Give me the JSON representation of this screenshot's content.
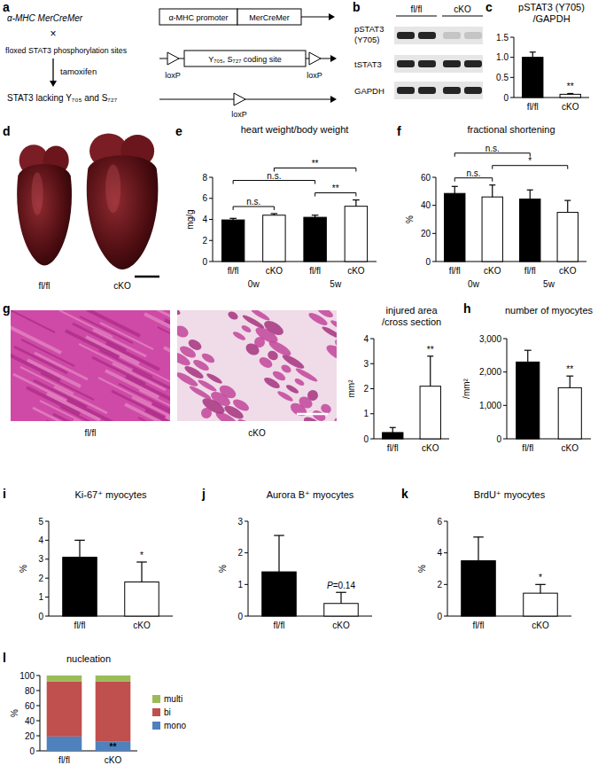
{
  "diagram": {
    "panel": "a",
    "left": [
      "α-MHC MerCreMer",
      "×",
      "floxed STAT3 phosphorylation sites",
      "tamoxifen",
      "STAT3 lacking Y₇₀₅ and S₇₂₇"
    ],
    "transgene": [
      "α-MHC promoter",
      "MerCreMer"
    ],
    "floxed": {
      "site": "Y₇₀₅, S₇₂₇ coding site",
      "lox": [
        "loxP",
        "loxP"
      ]
    },
    "deleted": {
      "lox": "loxP"
    }
  },
  "blot": {
    "panel": "b",
    "rows": [
      [
        "pSTAT3",
        "(Y705)"
      ],
      [
        "tSTAT3"
      ],
      [
        "GAPDH"
      ]
    ],
    "groups": [
      "fl/fl",
      "cKO"
    ]
  },
  "photo": {
    "panel": "d",
    "labels": [
      "fl/fl",
      "cKO"
    ]
  },
  "histology": {
    "panel": "g",
    "labels": [
      "fl/fl",
      "cKO"
    ]
  },
  "chart_data": [
    {
      "type": "bar",
      "panel": "c",
      "title": [
        "pSTAT3 (Y705)",
        "/GAPDH"
      ],
      "categories": [
        "fl/fl",
        "cKO"
      ],
      "values": [
        1.0,
        0.08
      ],
      "errors": [
        0.13,
        0.02
      ],
      "colors": [
        "#000000",
        "#ffffff"
      ],
      "ylim": [
        0,
        1.5
      ],
      "yticks": [
        0,
        0.5,
        {
          "value": 1,
          "label": "1.0"
        },
        1.5
      ],
      "annotations": [
        {
          "text": "**",
          "category": 1
        }
      ]
    },
    {
      "type": "bar",
      "panel": "e",
      "title": [
        "heart weight/body weight"
      ],
      "ylabel": "mg/g",
      "categories": [
        "fl/fl",
        "cKO",
        "fl/fl",
        "cKO"
      ],
      "group_labels": [
        "0w",
        "5w"
      ],
      "values": [
        3.95,
        4.4,
        4.2,
        5.25
      ],
      "errors": [
        0.15,
        0.15,
        0.2,
        0.6
      ],
      "colors": [
        "#000000",
        "#ffffff",
        "#000000",
        "#ffffff"
      ],
      "ylim": [
        0,
        8
      ],
      "yticks": [
        0,
        2,
        4,
        6,
        8
      ],
      "annotations": [
        {
          "text": "n.s.",
          "from": 0,
          "to": 1
        },
        {
          "text": "**",
          "from": 2,
          "to": 3
        },
        {
          "text": "n.s.",
          "from": 0,
          "to": 2
        },
        {
          "text": "**",
          "from": 1,
          "to": 3
        }
      ]
    },
    {
      "type": "bar",
      "panel": "f",
      "title": [
        "fractional shortening"
      ],
      "ylabel": "%",
      "categories": [
        "fl/fl",
        "cKO",
        "fl/fl",
        "cKO"
      ],
      "group_labels": [
        "0w",
        "5w"
      ],
      "values": [
        48.5,
        46,
        44.5,
        35
      ],
      "errors": [
        5,
        8.5,
        6.5,
        8.5
      ],
      "colors": [
        "#000000",
        "#ffffff",
        "#000000",
        "#ffffff"
      ],
      "ylim": [
        0,
        60
      ],
      "yticks": [
        0,
        20,
        40,
        60
      ],
      "annotations": [
        {
          "text": "n.s.",
          "from": 0,
          "to": 1
        },
        {
          "text": "*",
          "from": 1,
          "to": 3
        },
        {
          "text": "n.s.",
          "from": 0,
          "to": 2
        }
      ]
    },
    {
      "type": "bar",
      "title": [
        "injured area",
        "/cross section"
      ],
      "ylabel": "mm²",
      "categories": [
        "fl/fl",
        "cKO"
      ],
      "values": [
        0.25,
        2.1
      ],
      "errors": [
        0.2,
        1.2
      ],
      "colors": [
        "#000000",
        "#ffffff"
      ],
      "ylim": [
        0,
        4
      ],
      "yticks": [
        0,
        1,
        2,
        3,
        4
      ],
      "annotations": [
        {
          "text": "**",
          "category": 1
        }
      ]
    },
    {
      "type": "bar",
      "panel": "h",
      "title": [
        "number of myocytes"
      ],
      "ylabel": "/mm²",
      "categories": [
        "fl/fl",
        "cKO"
      ],
      "values": [
        2300,
        1530
      ],
      "errors": [
        350,
        350
      ],
      "colors": [
        "#000000",
        "#ffffff"
      ],
      "ylim": [
        0,
        3000
      ],
      "yticks": [
        0,
        {
          "value": 1000,
          "label": "1,000"
        },
        {
          "value": 2000,
          "label": "2,000"
        },
        {
          "value": 3000,
          "label": "3,000"
        }
      ],
      "annotations": [
        {
          "text": "**",
          "category": 1
        }
      ]
    },
    {
      "type": "bar",
      "panel": "i",
      "title": [
        "Ki-67⁺ myocytes"
      ],
      "ylabel": "%",
      "categories": [
        "fl/fl",
        "cKO"
      ],
      "values": [
        3.1,
        1.8
      ],
      "errors": [
        0.9,
        1.05
      ],
      "colors": [
        "#000000",
        "#ffffff"
      ],
      "ylim": [
        0,
        5
      ],
      "yticks": [
        0,
        1,
        2,
        3,
        4,
        5
      ],
      "annotations": [
        {
          "text": "*",
          "category": 1
        }
      ]
    },
    {
      "type": "bar",
      "panel": "j",
      "title": [
        "Aurora B⁺ myocytes"
      ],
      "ylabel": "%",
      "categories": [
        "fl/fl",
        "cKO"
      ],
      "values": [
        1.4,
        0.4
      ],
      "errors": [
        1.15,
        0.35
      ],
      "colors": [
        "#000000",
        "#ffffff"
      ],
      "ylim": [
        0,
        3
      ],
      "yticks": [
        0,
        1,
        2,
        3
      ],
      "annotations": [
        {
          "text": "P=0.14",
          "category": 1
        }
      ]
    },
    {
      "type": "bar",
      "panel": "k",
      "title": [
        "BrdU⁺ myocytes"
      ],
      "ylabel": "%",
      "categories": [
        "fl/fl",
        "cKO"
      ],
      "values": [
        3.5,
        1.45
      ],
      "errors": [
        1.5,
        0.55
      ],
      "colors": [
        "#000000",
        "#ffffff"
      ],
      "ylim": [
        0,
        6
      ],
      "yticks": [
        0,
        2,
        4,
        6
      ],
      "annotations": [
        {
          "text": "*",
          "category": 1
        }
      ]
    },
    {
      "type": "bar",
      "panel": "l",
      "title": [
        "nucleation"
      ],
      "ylabel": "%",
      "stacked": true,
      "legend": "right",
      "categories": [
        "fl/fl",
        "cKO"
      ],
      "series": [
        {
          "name": "mono",
          "color": "#4f81bd",
          "values": [
            19,
            12
          ]
        },
        {
          "name": "bi",
          "color": "#c0504d",
          "values": [
            73,
            80
          ]
        },
        {
          "name": "multi",
          "color": "#9bbb59",
          "values": [
            8,
            8
          ]
        }
      ],
      "ylim": [
        0,
        100
      ],
      "yticks": [
        0,
        20,
        40,
        60,
        80,
        100
      ],
      "annotations": [
        {
          "text": "**",
          "category": 1,
          "series": "mono"
        }
      ]
    }
  ]
}
